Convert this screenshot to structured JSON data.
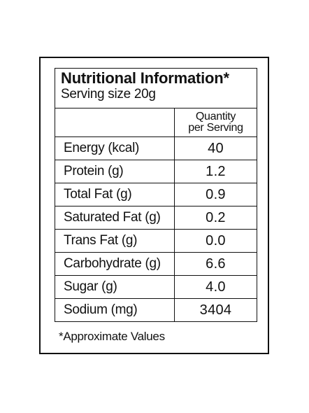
{
  "label": {
    "title": "Nutritional Information*",
    "serving_size": "Serving size 20g",
    "column_header": {
      "line1": "Quantity",
      "line2": "per Serving"
    },
    "rows": [
      {
        "name": "Energy (kcal)",
        "value": "40"
      },
      {
        "name": "Protein (g)",
        "value": "1.2"
      },
      {
        "name": "Total Fat (g)",
        "value": "0.9"
      },
      {
        "name": "Saturated Fat (g)",
        "value": "0.2"
      },
      {
        "name": "Trans Fat (g)",
        "value": "0.0"
      },
      {
        "name": "Carbohydrate (g)",
        "value": "6.6"
      },
      {
        "name": "Sugar (g)",
        "value": "4.0"
      },
      {
        "name": "Sodium (mg)",
        "value": "3404"
      }
    ],
    "footnote": "*Approximate Values"
  }
}
